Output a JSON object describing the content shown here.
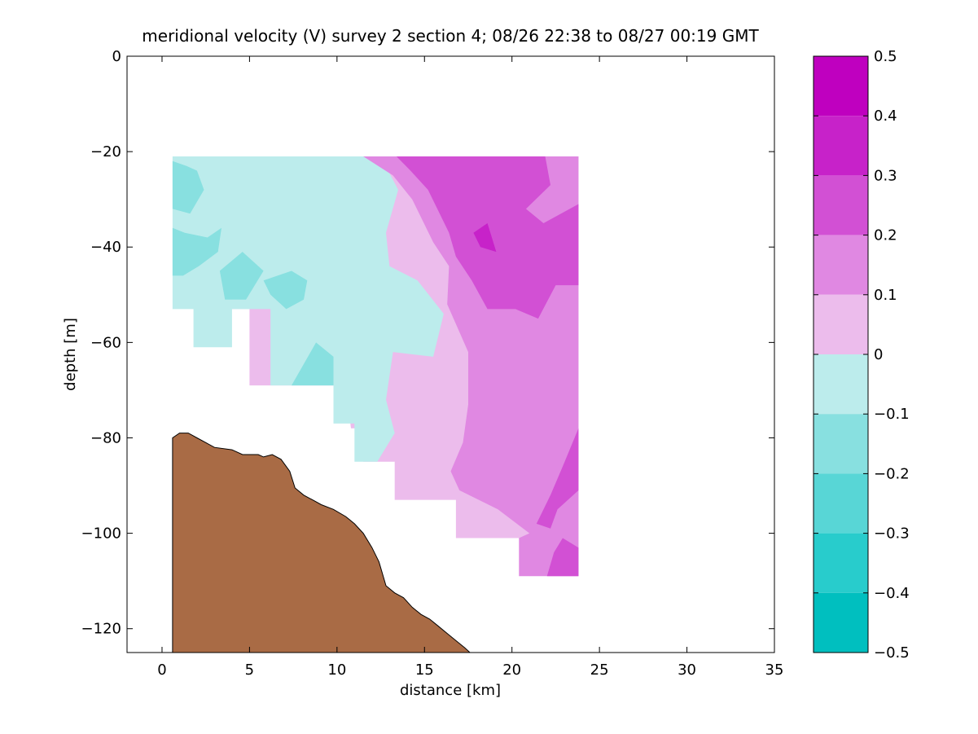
{
  "chart_data": {
    "type": "heatmap",
    "title": "meridional velocity (V) survey 2 section 4; 08/26 22:38 to 08/27 00:19 GMT",
    "xlabel": "distance [km]",
    "ylabel": "depth [m]",
    "xlim": [
      -2,
      35
    ],
    "ylim": [
      -125,
      0
    ],
    "x_ticks": [
      0,
      5,
      10,
      15,
      20,
      25,
      30,
      35
    ],
    "y_ticks": [
      0,
      -20,
      -40,
      -60,
      -80,
      -100,
      -120
    ],
    "grid": false,
    "colorbar": {
      "position": "right",
      "range": [
        -0.5,
        0.5
      ],
      "ticks": [
        0.5,
        0.4,
        0.3,
        0.2,
        0.1,
        0,
        -0.1,
        -0.2,
        -0.3,
        -0.4,
        -0.5
      ],
      "tick_labels": [
        "0.5",
        "0.4",
        "0.3",
        "0.2",
        "0.1",
        "0",
        "−0.1",
        "−0.2",
        "−0.3",
        "−0.4",
        "−0.5"
      ],
      "levels": [
        {
          "min": 0.4,
          "max": 0.5,
          "color": "#bf00bf"
        },
        {
          "min": 0.3,
          "max": 0.4,
          "color": "#c722c9"
        },
        {
          "min": 0.2,
          "max": 0.3,
          "color": "#d250d4"
        },
        {
          "min": 0.1,
          "max": 0.2,
          "color": "#e088e2"
        },
        {
          "min": 0.0,
          "max": 0.1,
          "color": "#ecbcec"
        },
        {
          "min": -0.1,
          "max": 0.0,
          "color": "#bcecec"
        },
        {
          "min": -0.2,
          "max": -0.1,
          "color": "#88e0e0"
        },
        {
          "min": -0.3,
          "max": -0.2,
          "color": "#58d6d6"
        },
        {
          "min": -0.4,
          "max": -0.3,
          "color": "#28cccc"
        },
        {
          "min": -0.5,
          "max": -0.4,
          "color": "#00bfbf"
        }
      ]
    },
    "regions": [
      {
        "name": "pos-0-0.1",
        "value": 0.05,
        "polygon": [
          [
            3.2,
            -21
          ],
          [
            23.8,
            -21
          ],
          [
            23.8,
            -105
          ],
          [
            21,
            -109
          ],
          [
            20.5,
            -101
          ],
          [
            16.8,
            -101
          ],
          [
            16.8,
            -93
          ],
          [
            13.3,
            -93
          ],
          [
            13.3,
            -85
          ],
          [
            11.5,
            -85
          ],
          [
            11.5,
            -78
          ],
          [
            10.8,
            -78
          ],
          [
            10.5,
            -69
          ],
          [
            5,
            -69
          ],
          [
            5,
            -53
          ],
          [
            3.2,
            -53
          ]
        ]
      },
      {
        "name": "neg-0-0.1",
        "value": -0.05,
        "polygon": [
          [
            0.6,
            -21
          ],
          [
            12.5,
            -21
          ],
          [
            13.5,
            -28
          ],
          [
            12.8,
            -37
          ],
          [
            13,
            -44
          ],
          [
            14.6,
            -47
          ],
          [
            16.1,
            -54
          ],
          [
            15.5,
            -63
          ],
          [
            13.2,
            -62
          ],
          [
            12.8,
            -72
          ],
          [
            13.3,
            -79
          ],
          [
            12.3,
            -85
          ],
          [
            11,
            -85
          ],
          [
            11,
            -77
          ],
          [
            9.8,
            -77
          ],
          [
            9.8,
            -69
          ],
          [
            6.2,
            -69
          ],
          [
            6.2,
            -53
          ],
          [
            4,
            -53
          ],
          [
            4,
            -61
          ],
          [
            1.8,
            -61
          ],
          [
            1.8,
            -53
          ],
          [
            0.6,
            -53
          ]
        ]
      },
      {
        "name": "pos-0.1-0.2",
        "value": 0.15,
        "polygon": [
          [
            11.5,
            -21
          ],
          [
            23.8,
            -21
          ],
          [
            23.8,
            -109
          ],
          [
            20.4,
            -109
          ],
          [
            20.4,
            -101
          ],
          [
            21,
            -100
          ],
          [
            19.2,
            -95
          ],
          [
            17,
            -91
          ],
          [
            16.5,
            -87
          ],
          [
            17.2,
            -81
          ],
          [
            17.5,
            -73
          ],
          [
            17.5,
            -62
          ],
          [
            16.3,
            -52
          ],
          [
            16.4,
            -44
          ],
          [
            15.5,
            -39
          ],
          [
            14.3,
            -30
          ],
          [
            13.2,
            -25
          ]
        ]
      },
      {
        "name": "pos-0.2-0.3-upper",
        "value": 0.25,
        "polygon": [
          [
            13.4,
            -21
          ],
          [
            21.9,
            -21
          ],
          [
            22.2,
            -27
          ],
          [
            20.8,
            -32
          ],
          [
            21.8,
            -35
          ],
          [
            23.8,
            -31
          ],
          [
            23.8,
            -48
          ],
          [
            22.5,
            -48
          ],
          [
            21.5,
            -55
          ],
          [
            20.2,
            -53
          ],
          [
            18.6,
            -53
          ],
          [
            17.7,
            -47
          ],
          [
            16.8,
            -42
          ],
          [
            16.4,
            -37
          ],
          [
            16,
            -34
          ],
          [
            15.2,
            -28
          ],
          [
            14.2,
            -24
          ]
        ]
      },
      {
        "name": "pos-0.2-0.3-lower",
        "value": 0.25,
        "polygon": [
          [
            23.8,
            -78
          ],
          [
            23.8,
            -91
          ],
          [
            22.6,
            -95
          ],
          [
            22.2,
            -99
          ],
          [
            21.4,
            -98
          ],
          [
            22.2,
            -92
          ],
          [
            22.9,
            -86
          ]
        ]
      },
      {
        "name": "pos-0.2-0.3-bottom",
        "value": 0.25,
        "polygon": [
          [
            22,
            -109
          ],
          [
            23.8,
            -109
          ],
          [
            23.8,
            -103
          ],
          [
            22.9,
            -101
          ],
          [
            22.4,
            -104
          ]
        ]
      },
      {
        "name": "pos-0.3-0.4",
        "value": 0.35,
        "polygon": [
          [
            17.8,
            -37
          ],
          [
            18.6,
            -35
          ],
          [
            19.1,
            -41
          ],
          [
            18.2,
            -40
          ]
        ]
      },
      {
        "name": "neg-0.1-0.2-a",
        "value": -0.15,
        "polygon": [
          [
            0.6,
            -22
          ],
          [
            1.4,
            -23
          ],
          [
            2,
            -24
          ],
          [
            2.4,
            -28
          ],
          [
            1.6,
            -33
          ],
          [
            0.6,
            -32
          ]
        ]
      },
      {
        "name": "neg-0.1-0.2-b",
        "value": -0.15,
        "polygon": [
          [
            0.6,
            -36
          ],
          [
            1.3,
            -37
          ],
          [
            2.6,
            -38
          ],
          [
            3.4,
            -36
          ],
          [
            3.2,
            -41
          ],
          [
            2.1,
            -44
          ],
          [
            1.2,
            -46
          ],
          [
            0.6,
            -46
          ]
        ]
      },
      {
        "name": "neg-0.1-0.2-c",
        "value": -0.15,
        "polygon": [
          [
            3.3,
            -45
          ],
          [
            4.6,
            -41
          ],
          [
            5.8,
            -45
          ],
          [
            4.8,
            -51
          ],
          [
            3.6,
            -51
          ]
        ]
      },
      {
        "name": "neg-0.1-0.2-d",
        "value": -0.15,
        "polygon": [
          [
            5.8,
            -47
          ],
          [
            7.4,
            -45
          ],
          [
            8.3,
            -47
          ],
          [
            8.1,
            -51
          ],
          [
            7.1,
            -53
          ],
          [
            6.2,
            -50
          ]
        ]
      },
      {
        "name": "neg-0.1-0.2-e",
        "value": -0.15,
        "polygon": [
          [
            7.4,
            -69
          ],
          [
            8.8,
            -60
          ],
          [
            9.8,
            -63
          ],
          [
            9.8,
            -69
          ]
        ]
      }
    ],
    "bathymetry": {
      "color": "#a96b45",
      "points": [
        [
          0.6,
          -125
        ],
        [
          0.6,
          -80
        ],
        [
          1,
          -79
        ],
        [
          1.5,
          -79
        ],
        [
          2,
          -80
        ],
        [
          2.5,
          -81
        ],
        [
          3,
          -82
        ],
        [
          4,
          -82.5
        ],
        [
          4.6,
          -83.5
        ],
        [
          5,
          -83.5
        ],
        [
          5.5,
          -83.5
        ],
        [
          5.8,
          -84
        ],
        [
          6.3,
          -83.5
        ],
        [
          6.8,
          -84.5
        ],
        [
          7.3,
          -87
        ],
        [
          7.6,
          -90.5
        ],
        [
          8.1,
          -92
        ],
        [
          8.6,
          -93
        ],
        [
          9.1,
          -94
        ],
        [
          9.8,
          -95
        ],
        [
          10.5,
          -96.5
        ],
        [
          11,
          -98
        ],
        [
          11.5,
          -100
        ],
        [
          12,
          -103
        ],
        [
          12.4,
          -106
        ],
        [
          12.8,
          -111
        ],
        [
          13.3,
          -112.5
        ],
        [
          13.8,
          -113.5
        ],
        [
          14.3,
          -115.5
        ],
        [
          14.8,
          -117
        ],
        [
          15.3,
          -118
        ],
        [
          15.8,
          -119.5
        ],
        [
          16.3,
          -121
        ],
        [
          16.8,
          -122.5
        ],
        [
          17.3,
          -124
        ],
        [
          17.6,
          -125
        ]
      ]
    }
  }
}
